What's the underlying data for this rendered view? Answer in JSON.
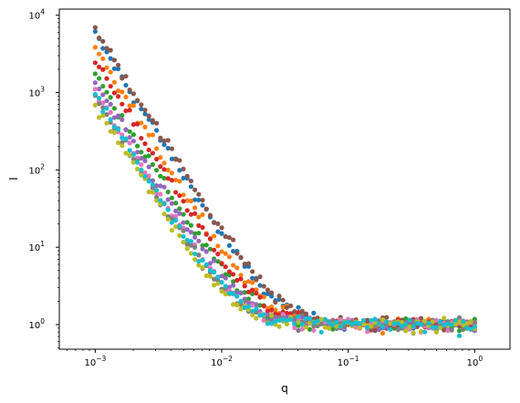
{
  "chart_data": {
    "type": "scatter",
    "title": "",
    "xlabel": "q",
    "ylabel": "I",
    "xscale": "log",
    "yscale": "log",
    "xlim": [
      0.00052,
      1.9
    ],
    "ylim": [
      0.48,
      12000
    ],
    "x_ticks": [
      {
        "value": 0.001,
        "base": "10",
        "exp": "−3"
      },
      {
        "value": 0.01,
        "base": "10",
        "exp": "−2"
      },
      {
        "value": 0.1,
        "base": "10",
        "exp": "−1"
      },
      {
        "value": 1,
        "base": "10",
        "exp": "0"
      }
    ],
    "y_ticks": [
      {
        "value": 1,
        "base": "10",
        "exp": "0"
      },
      {
        "value": 10,
        "base": "10",
        "exp": "1"
      },
      {
        "value": 100,
        "base": "10",
        "exp": "2"
      },
      {
        "value": 1000,
        "base": "10",
        "exp": "3"
      },
      {
        "value": 10000,
        "base": "10",
        "exp": "4"
      }
    ],
    "grid": false,
    "legend": "none",
    "q_range": [
      0.001,
      1.0
    ],
    "points_per_series": 100,
    "series": [
      {
        "color": "#1f77b4",
        "I_at_qmin": 5500,
        "power_law_exponent": -2.6,
        "background": 1.0
      },
      {
        "color": "#ff7f0e",
        "I_at_qmin": 3500,
        "power_law_exponent": -2.6,
        "background": 1.0
      },
      {
        "color": "#2ca02c",
        "I_at_qmin": 1700,
        "power_law_exponent": -2.6,
        "background": 1.0
      },
      {
        "color": "#d62728",
        "I_at_qmin": 2500,
        "power_law_exponent": -2.6,
        "background": 1.0
      },
      {
        "color": "#9467bd",
        "I_at_qmin": 1300,
        "power_law_exponent": -2.6,
        "background": 1.0
      },
      {
        "color": "#8c564b",
        "I_at_qmin": 6500,
        "power_law_exponent": -2.6,
        "background": 1.0
      },
      {
        "color": "#e377c2",
        "I_at_qmin": 1000,
        "power_law_exponent": -2.6,
        "background": 1.0
      },
      {
        "color": "#7f7f7f",
        "I_at_qmin": 900,
        "power_law_exponent": -2.6,
        "background": 1.0
      },
      {
        "color": "#bcbd22",
        "I_at_qmin": 700,
        "power_law_exponent": -2.6,
        "background": 1.0
      },
      {
        "color": "#17becf",
        "I_at_qmin": 950,
        "power_law_exponent": -2.6,
        "background": 1.0
      }
    ]
  }
}
